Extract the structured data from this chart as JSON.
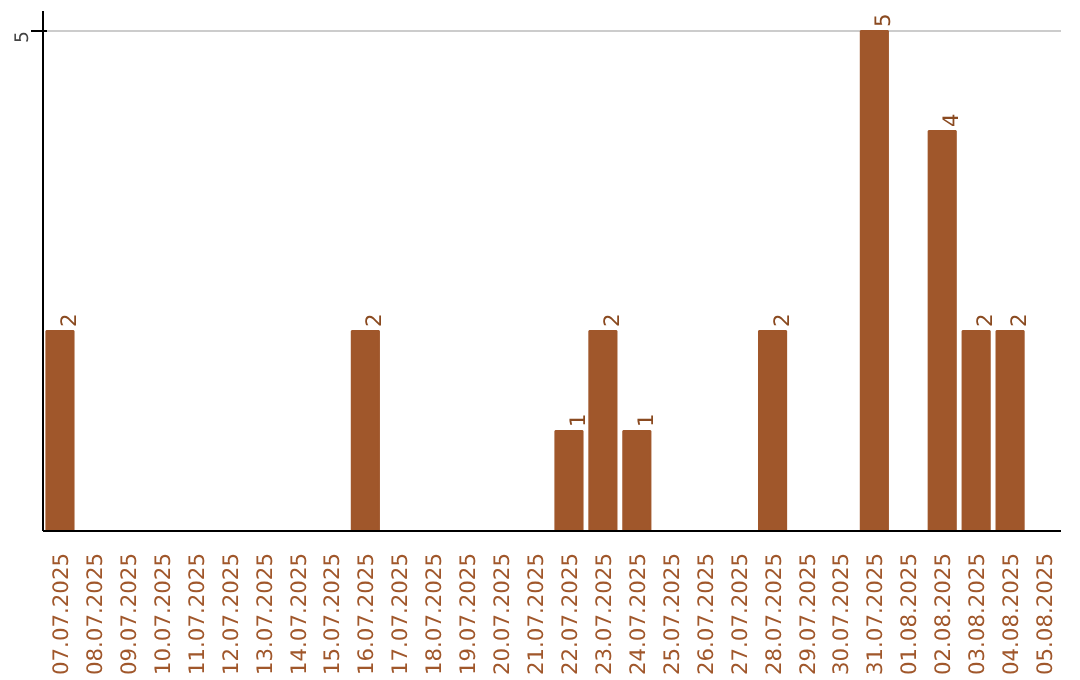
{
  "chart_data": {
    "type": "bar",
    "categories": [
      "07.07.2025",
      "08.07.2025",
      "09.07.2025",
      "10.07.2025",
      "11.07.2025",
      "12.07.2025",
      "13.07.2025",
      "14.07.2025",
      "15.07.2025",
      "16.07.2025",
      "17.07.2025",
      "18.07.2025",
      "19.07.2025",
      "20.07.2025",
      "21.07.2025",
      "22.07.2025",
      "23.07.2025",
      "24.07.2025",
      "25.07.2025",
      "26.07.2025",
      "27.07.2025",
      "28.07.2025",
      "29.07.2025",
      "30.07.2025",
      "31.07.2025",
      "01.08.2025",
      "02.08.2025",
      "03.08.2025",
      "04.08.2025",
      "05.08.2025"
    ],
    "values": [
      2,
      0,
      0,
      0,
      0,
      0,
      0,
      0,
      0,
      2,
      0,
      0,
      0,
      0,
      0,
      1,
      2,
      1,
      0,
      0,
      0,
      2,
      0,
      0,
      5,
      0,
      4,
      2,
      2,
      0
    ],
    "value_labels": [
      "2",
      null,
      null,
      null,
      null,
      null,
      null,
      null,
      null,
      "2",
      null,
      null,
      null,
      null,
      null,
      "1",
      "2",
      "1",
      null,
      null,
      null,
      "2",
      null,
      null,
      "5",
      null,
      "4",
      "2",
      "2",
      null
    ],
    "color": "#a0572b",
    "ylim": [
      0,
      5.2
    ],
    "yticks": [
      5
    ],
    "grid": "y"
  }
}
